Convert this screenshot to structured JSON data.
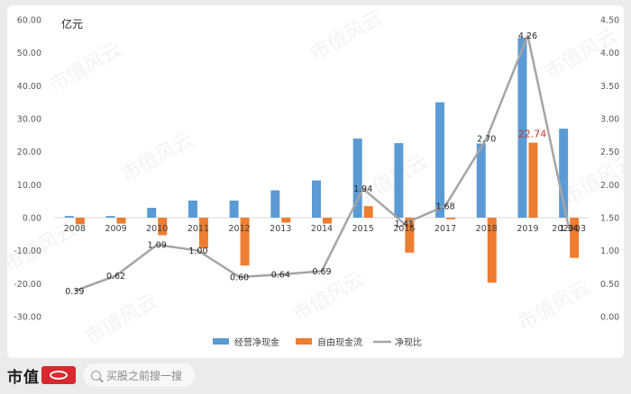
{
  "chart_data": {
    "type": "bar+line",
    "unit_label": "亿元",
    "categories": [
      "2008",
      "2009",
      "2010",
      "2011",
      "2012",
      "2013",
      "2014",
      "2015",
      "2016",
      "2017",
      "2018",
      "2019",
      "2020Q3"
    ],
    "series": [
      {
        "name": "经营净现金",
        "type": "bar",
        "axis": "left",
        "color": "#5b9bd5",
        "values": [
          0.5,
          0.5,
          3.0,
          5.2,
          5.2,
          8.3,
          11.3,
          24.0,
          22.6,
          35.0,
          22.5,
          54.5,
          27.0
        ]
      },
      {
        "name": "自由现金流",
        "type": "bar",
        "axis": "left",
        "color": "#ed7d31",
        "values": [
          -2.0,
          -1.8,
          -5.3,
          -9.3,
          -14.5,
          -1.5,
          -1.8,
          3.5,
          -10.6,
          -0.5,
          -19.7,
          22.74,
          -12.2
        ]
      },
      {
        "name": "净现比",
        "type": "line",
        "axis": "right",
        "color": "#a5a5a5",
        "values": [
          0.39,
          0.62,
          1.09,
          1.0,
          0.6,
          0.64,
          0.69,
          1.94,
          1.41,
          1.68,
          2.7,
          4.26,
          1.34
        ]
      }
    ],
    "left_axis": {
      "min": -30,
      "max": 60,
      "ticks": [
        "60.00",
        "50.00",
        "40.00",
        "30.00",
        "20.00",
        "10.00",
        "0.00",
        "-10.00",
        "-20.00",
        "-30.00"
      ]
    },
    "right_axis": {
      "min": 0,
      "max": 4.5,
      "ticks": [
        "4.50",
        "4.00",
        "3.50",
        "3.00",
        "2.50",
        "2.00",
        "1.50",
        "1.00",
        "0.50",
        "0.00"
      ]
    },
    "line_labels": [
      "0.39",
      "0.62",
      "1.09",
      "1.00",
      "0.60",
      "0.64",
      "0.69",
      "1.94",
      "1.41",
      "1.68",
      "2.70",
      "4.26",
      "1.34"
    ],
    "bar_annotation": {
      "series": 1,
      "index": 11,
      "text": "22.74",
      "color": "#c0392b"
    },
    "legend_position": "bottom-center",
    "grid": false
  },
  "watermark": "市值风云",
  "footer": {
    "brand": "市值",
    "search_placeholder": "买股之前搜一搜"
  }
}
